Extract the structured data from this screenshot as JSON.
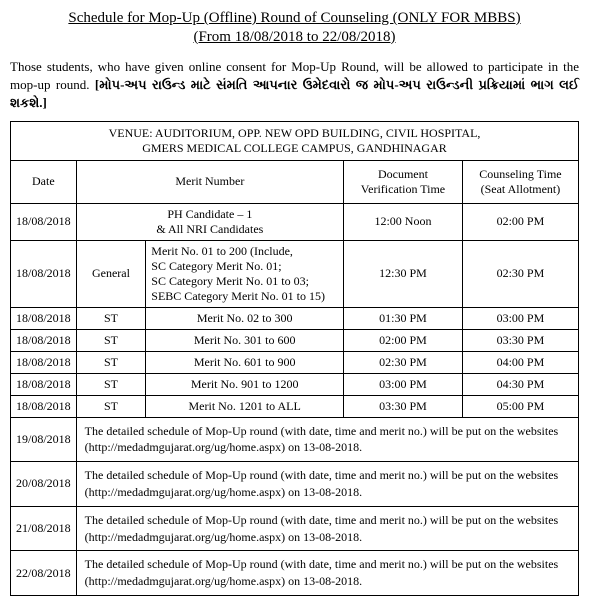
{
  "title": "Schedule for Mop-Up (Offline) Round of Counseling (ONLY FOR MBBS)",
  "subtitle": "(From 18/08/2018 to 22/08/2018)",
  "intro_en": "Those students, who have given online consent for Mop-Up Round, will be allowed to participate in the mop-up round. ",
  "intro_gu": "[મોપ-અપ રાઉન્ડ માટે સંમતિ આપનાર ઉમેદવારો જ મોપ-અપ રાઉન્ડની પ્રક્રિયામાં ભાગ લઈ શકશે.]",
  "venue_l1": "VENUE: AUDITORIUM, OPP. NEW OPD BUILDING, CIVIL HOSPITAL,",
  "venue_l2": "GMERS MEDICAL COLLEGE CAMPUS, GANDHINAGAR",
  "headers": {
    "date": "Date",
    "merit": "Merit Number",
    "doc_l1": "Document",
    "doc_l2": "Verification Time",
    "counsel_l1": "Counseling Time",
    "counsel_l2": "(Seat Allotment)"
  },
  "rows": [
    {
      "date": "18/08/2018",
      "cat": "",
      "merit_l1": "PH Candidate – 1",
      "merit_l2": "& All NRI Candidates",
      "dvt": "12:00 Noon",
      "ct": "02:00 PM"
    },
    {
      "date": "18/08/2018",
      "cat": "General",
      "m1": "Merit No.  01 to 200 (Include,",
      "m2": "SC Category  Merit No.  01;",
      "m3": "SC Category  Merit No.  01 to 03;",
      "m4": "SEBC Category Merit No.  01 to 15)",
      "dvt": "12:30 PM",
      "ct": "02:30 PM"
    },
    {
      "date": "18/08/2018",
      "cat": "ST",
      "merit": "Merit No. 02 to 300",
      "dvt": "01:30 PM",
      "ct": "03:00 PM"
    },
    {
      "date": "18/08/2018",
      "cat": "ST",
      "merit": "Merit No. 301 to 600",
      "dvt": "02:00 PM",
      "ct": "03:30 PM"
    },
    {
      "date": "18/08/2018",
      "cat": "ST",
      "merit": "Merit No. 601 to 900",
      "dvt": "02:30 PM",
      "ct": "04:00 PM"
    },
    {
      "date": "18/08/2018",
      "cat": "ST",
      "merit": "Merit No. 901 to 1200",
      "dvt": "03:00 PM",
      "ct": "04:30 PM"
    },
    {
      "date": "18/08/2018",
      "cat": "ST",
      "merit": "Merit No. 1201 to ALL",
      "dvt": "03:30 PM",
      "ct": "05:00 PM"
    }
  ],
  "detail_rows": [
    {
      "date": "19/08/2018",
      "text": "The detailed schedule of Mop-Up round (with date, time and merit no.) will be put on the websites (http://medadmgujarat.org/ug/home.aspx) on 13-08-2018."
    },
    {
      "date": "20/08/2018",
      "text": "The detailed schedule of Mop-Up round (with date, time and merit no.) will be put on the websites (http://medadmgujarat.org/ug/home.aspx) on 13-08-2018."
    },
    {
      "date": "21/08/2018",
      "text": "The detailed schedule of Mop-Up round (with date, time and merit no.) will be put on the websites (http://medadmgujarat.org/ug/home.aspx) on 13-08-2018."
    },
    {
      "date": "22/08/2018",
      "text": "The detailed schedule of Mop-Up round (with date, time and merit no.) will be put on the websites (http://medadmgujarat.org/ug/home.aspx) on 13-08-2018."
    }
  ]
}
